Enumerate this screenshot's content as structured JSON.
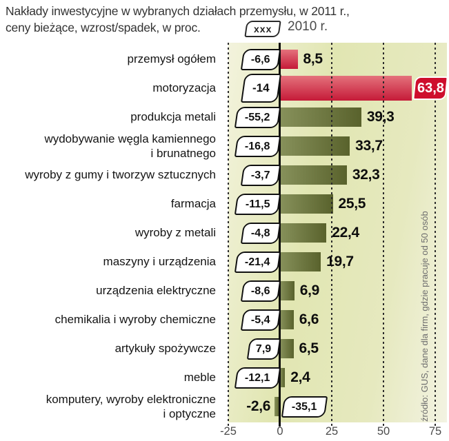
{
  "title": {
    "line1": "Nakłady inwestycyjne w wybranych działach przemysłu, w 2011 r.,",
    "line2": "ceny bieżące, wzrost/spadek, w proc."
  },
  "legend": {
    "box_label": "xxx",
    "year_label": "2010 r."
  },
  "source_note": "źródło: GUS, dane dla firm, gdzie pracuje od 50 osób",
  "colors": {
    "bar_green_light": "#87915b",
    "bar_green_dark": "#59622c",
    "bar_red_light": "#e4727c",
    "bar_red_dark": "#c51a38",
    "badge_red": "#ce0e2d",
    "panel_tint": "#e3e8b6",
    "axis_color": "#0c0c0c"
  },
  "chart_data": {
    "type": "bar",
    "orientation": "horizontal",
    "title": "Nakłady inwestycyjne w wybranych działach przemysłu, w 2011 r., ceny bieżące, wzrost/spadek, w proc.",
    "unit": "%",
    "xlim": [
      -25,
      75
    ],
    "x_ticks": [
      -25,
      0,
      25,
      50,
      75
    ],
    "x_tick_labels": [
      "-25",
      "0",
      "25",
      "50",
      "75"
    ],
    "grid": "vertical-dashed",
    "legend_note": "values in white callouts = 2010 r.",
    "categories": [
      "przemysł ogółem",
      "motoryzacja",
      "produkcja metali",
      "wydobywanie węgla kamiennego i brunatnego",
      "wyroby z gumy i tworzyw sztucznych",
      "farmacja",
      "wyroby z metali",
      "maszyny i urządzenia",
      "urządzenia elektryczne",
      "chemikalia i wyroby chemiczne",
      "artykuły spożywcze",
      "meble",
      "komputery, wyroby elektroniczne i optyczne"
    ],
    "series": [
      {
        "name": "2011",
        "values": [
          8.5,
          63.8,
          39.3,
          33.7,
          32.3,
          25.5,
          22.4,
          19.7,
          6.9,
          6.6,
          6.5,
          2.4,
          -2.6
        ]
      },
      {
        "name": "2010",
        "values": [
          -6.6,
          -14,
          -55.2,
          -16.8,
          -3.7,
          -11.5,
          -4.8,
          -21.4,
          -8.6,
          -5.4,
          7.9,
          -12.1,
          -35.1
        ]
      }
    ],
    "rows": [
      {
        "label_lines": [
          "przemysł ogółem"
        ],
        "v2010": "-6,6",
        "v2011": "8,5",
        "value": 8.5,
        "color": "red"
      },
      {
        "label_lines": [
          "motoryzacja"
        ],
        "v2010": "-14",
        "v2011": "63,8",
        "value": 63.8,
        "color": "red",
        "badge": true,
        "big_callout": true
      },
      {
        "label_lines": [
          "produkcja metali"
        ],
        "v2010": "-55,2",
        "v2011": "39,3",
        "value": 39.3,
        "color": "green"
      },
      {
        "label_lines": [
          "wydobywanie węgla kamiennego",
          "i brunatnego"
        ],
        "v2010": "-16,8",
        "v2011": "33,7",
        "value": 33.7,
        "color": "green"
      },
      {
        "label_lines": [
          "wyroby z gumy i tworzyw sztucznych"
        ],
        "v2010": "-3,7",
        "v2011": "32,3",
        "value": 32.3,
        "color": "green"
      },
      {
        "label_lines": [
          "farmacja"
        ],
        "v2010": "-11,5",
        "v2011": "25,5",
        "value": 25.5,
        "color": "green"
      },
      {
        "label_lines": [
          "wyroby z metali"
        ],
        "v2010": "-4,8",
        "v2011": "22,4",
        "value": 22.4,
        "color": "green"
      },
      {
        "label_lines": [
          "maszyny i urządzenia"
        ],
        "v2010": "-21,4",
        "v2011": "19,7",
        "value": 19.7,
        "color": "green"
      },
      {
        "label_lines": [
          "urządzenia elektryczne"
        ],
        "v2010": "-8,6",
        "v2011": "6,9",
        "value": 6.9,
        "color": "green"
      },
      {
        "label_lines": [
          "chemikalia i wyroby chemiczne"
        ],
        "v2010": "-5,4",
        "v2011": "6,6",
        "value": 6.6,
        "color": "green"
      },
      {
        "label_lines": [
          "artykuły spożywcze"
        ],
        "v2010": "7,9",
        "v2011": "6,5",
        "value": 6.5,
        "color": "green"
      },
      {
        "label_lines": [
          "meble"
        ],
        "v2010": "-12,1",
        "v2011": "2,4",
        "value": 2.4,
        "color": "green"
      },
      {
        "label_lines": [
          "komputery, wyroby elektroniczne",
          "i optyczne"
        ],
        "v2010": "-35,1",
        "v2011": "-2,6",
        "value": -2.6,
        "color": "green",
        "callout_right": true
      }
    ]
  }
}
